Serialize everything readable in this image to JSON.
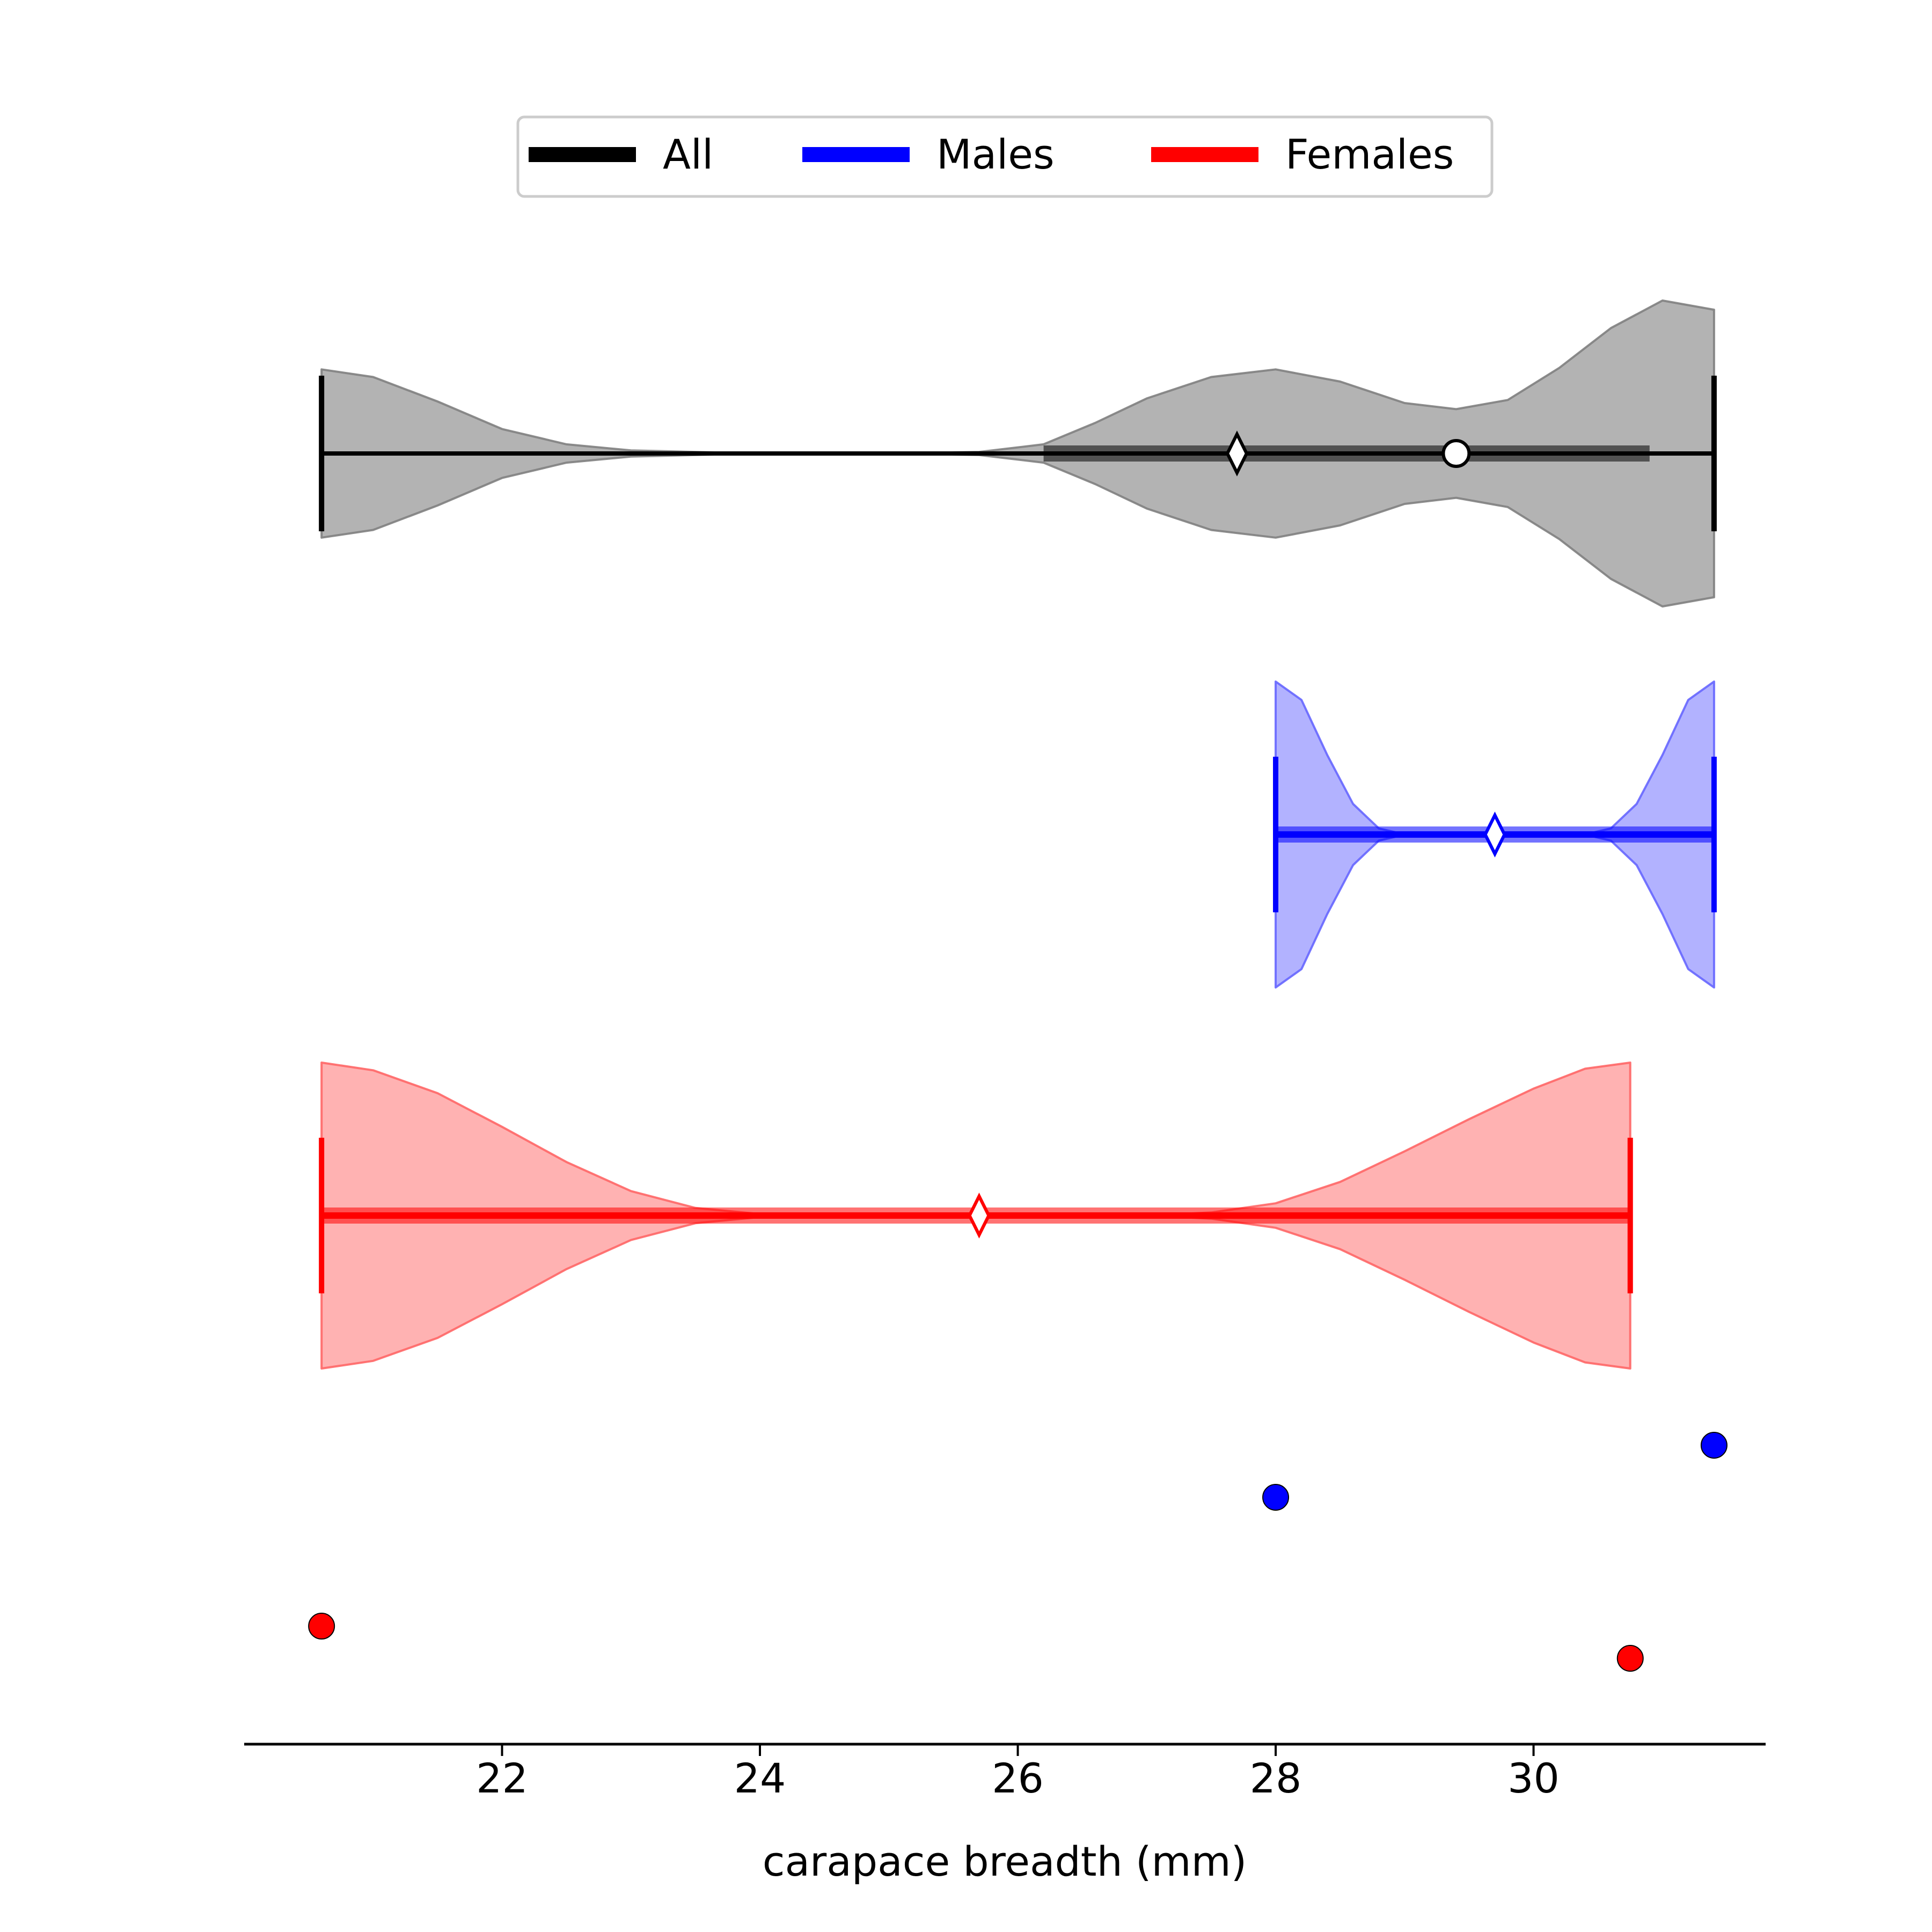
{
  "chart_data": {
    "type": "violin",
    "orientation": "horizontal",
    "xlabel": "carapace breadth (mm)",
    "ylabel": "",
    "xlim": [
      20.0,
      31.8
    ],
    "x_ticks": [
      22,
      24,
      26,
      28,
      30
    ],
    "x_tick_labels": [
      "22",
      "24",
      "26",
      "28",
      "30"
    ],
    "grid": false,
    "legend": {
      "placement": "top-center",
      "columns": 3,
      "entries": [
        {
          "label": "All",
          "color": "#000000"
        },
        {
          "label": "Males",
          "color": "#0000ff"
        },
        {
          "label": "Females",
          "color": "#ff0000"
        }
      ]
    },
    "series": [
      {
        "name": "All",
        "color": "#000000",
        "fill": "#808080",
        "min": 20.6,
        "max": 31.4,
        "q1": 26.2,
        "q3": 30.9,
        "median": 27.7,
        "mean": 29.4,
        "density": [
          [
            20.6,
            0.55
          ],
          [
            21.0,
            0.5
          ],
          [
            21.5,
            0.34
          ],
          [
            22.0,
            0.16
          ],
          [
            22.5,
            0.06
          ],
          [
            23.0,
            0.02
          ],
          [
            24.0,
            0.0
          ],
          [
            25.0,
            0.0
          ],
          [
            25.7,
            0.01
          ],
          [
            26.2,
            0.06
          ],
          [
            26.6,
            0.2
          ],
          [
            27.0,
            0.36
          ],
          [
            27.5,
            0.5
          ],
          [
            28.0,
            0.55
          ],
          [
            28.5,
            0.47
          ],
          [
            29.0,
            0.33
          ],
          [
            29.4,
            0.29
          ],
          [
            29.8,
            0.35
          ],
          [
            30.2,
            0.56
          ],
          [
            30.6,
            0.82
          ],
          [
            31.0,
            1.0
          ],
          [
            31.4,
            0.94
          ]
        ]
      },
      {
        "name": "Males",
        "color": "#0000ff",
        "fill": "#6666ff",
        "min": 28.0,
        "max": 31.4,
        "q1": 28.0,
        "q3": 31.4,
        "median": 29.7,
        "density": [
          [
            28.0,
            1.0
          ],
          [
            28.2,
            0.88
          ],
          [
            28.4,
            0.52
          ],
          [
            28.6,
            0.2
          ],
          [
            28.8,
            0.04
          ],
          [
            29.0,
            0.0
          ],
          [
            29.7,
            0.0
          ],
          [
            30.4,
            0.0
          ],
          [
            30.6,
            0.04
          ],
          [
            30.8,
            0.2
          ],
          [
            31.0,
            0.52
          ],
          [
            31.2,
            0.88
          ],
          [
            31.4,
            1.0
          ]
        ]
      },
      {
        "name": "Females",
        "color": "#ff0000",
        "fill": "#ff6666",
        "min": 20.6,
        "max": 30.75,
        "q1": 20.6,
        "q3": 30.75,
        "median": 25.7,
        "density": [
          [
            20.6,
            1.0
          ],
          [
            21.0,
            0.95
          ],
          [
            21.5,
            0.8
          ],
          [
            22.0,
            0.58
          ],
          [
            22.5,
            0.35
          ],
          [
            23.0,
            0.16
          ],
          [
            23.5,
            0.05
          ],
          [
            24.0,
            0.01
          ],
          [
            25.0,
            0.0
          ],
          [
            26.0,
            0.0
          ],
          [
            27.0,
            0.0
          ],
          [
            27.5,
            0.02
          ],
          [
            28.0,
            0.08
          ],
          [
            28.5,
            0.22
          ],
          [
            29.0,
            0.42
          ],
          [
            29.5,
            0.63
          ],
          [
            30.0,
            0.83
          ],
          [
            30.4,
            0.96
          ],
          [
            30.75,
            1.0
          ]
        ]
      }
    ],
    "points": [
      {
        "series": "Males",
        "x": 28.0,
        "color": "#0000ff"
      },
      {
        "series": "Males",
        "x": 31.4,
        "color": "#0000ff"
      },
      {
        "series": "Females",
        "x": 20.6,
        "color": "#ff0000"
      },
      {
        "series": "Females",
        "x": 30.75,
        "color": "#ff0000"
      }
    ]
  }
}
